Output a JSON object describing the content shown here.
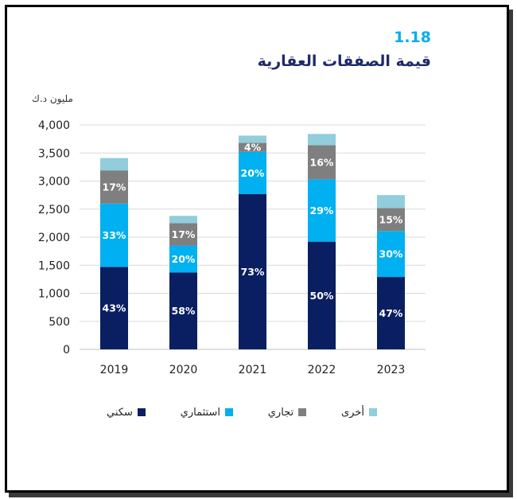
{
  "figure": {
    "number": "1.18",
    "title": "قيمة الصفقات العقارية"
  },
  "chart_data": {
    "type": "bar",
    "stacked": true,
    "ylabel": "مليون د.ك",
    "ylim": [
      0,
      4000
    ],
    "yticks": [
      "0",
      "500",
      "1,000",
      "1,500",
      "2,000",
      "2,500",
      "3,000",
      "3,500",
      "4,000"
    ],
    "ytick_values": [
      0,
      500,
      1000,
      1500,
      2000,
      2500,
      3000,
      3500,
      4000
    ],
    "grid": true,
    "legend_position": "bottom",
    "categories": [
      "2019",
      "2020",
      "2021",
      "2022",
      "2023"
    ],
    "series": [
      {
        "name": "سكني",
        "color": "#0a1f62",
        "values": [
          1470,
          1370,
          2770,
          1920,
          1290
        ],
        "labels": [
          "43%",
          "58%",
          "73%",
          "50%",
          "47%"
        ]
      },
      {
        "name": "استثماري",
        "color": "#00b0f0",
        "values": [
          1130,
          480,
          750,
          1110,
          820
        ],
        "labels": [
          "33%",
          "20%",
          "20%",
          "29%",
          "30%"
        ]
      },
      {
        "name": "تجاري",
        "color": "#7f7f7f",
        "values": [
          590,
          400,
          160,
          610,
          410
        ],
        "labels": [
          "17%",
          "17%",
          "4%",
          "16%",
          "15%"
        ]
      },
      {
        "name": "أخرى",
        "color": "#92cddc",
        "values": [
          220,
          130,
          130,
          200,
          230
        ],
        "labels": [
          "",
          "",
          "",
          "",
          ""
        ]
      }
    ]
  }
}
